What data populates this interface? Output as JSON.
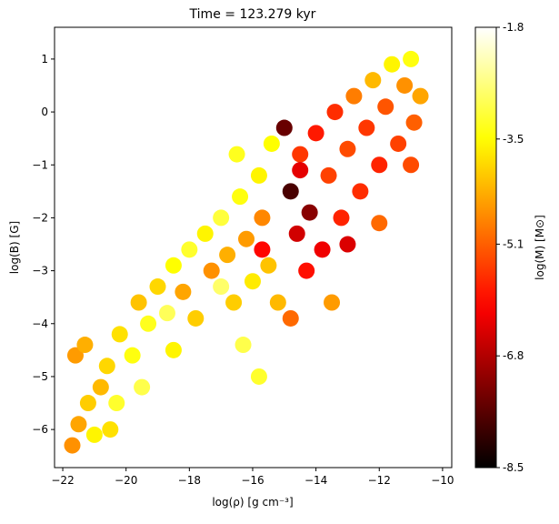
{
  "chart_data": {
    "type": "scatter",
    "title": "Time = 123.279 kyr",
    "xlabel": "log(ρ) [g cm⁻³]",
    "ylabel": "log(B) [G]",
    "x": [
      -21.7,
      -21.5,
      -21.2,
      -21.0,
      -20.8,
      -21.6,
      -21.3,
      -20.6,
      -20.3,
      -20.2,
      -19.8,
      -19.6,
      -19.3,
      -19.0,
      -18.7,
      -18.5,
      -18.2,
      -18.0,
      -17.8,
      -17.5,
      -17.3,
      -17.0,
      -16.8,
      -16.6,
      -16.4,
      -16.2,
      -16.0,
      -15.8,
      -15.7,
      -15.5,
      -15.4,
      -15.2,
      -15.0,
      -14.8,
      -14.6,
      -14.5,
      -14.3,
      -14.2,
      -14.0,
      -13.8,
      -13.6,
      -13.4,
      -13.2,
      -13.0,
      -12.8,
      -12.6,
      -12.4,
      -12.2,
      -12.0,
      -11.8,
      -11.6,
      -11.4,
      -11.2,
      -11.0,
      -10.9,
      -10.7,
      -12.0,
      -11.0,
      -13.5,
      -14.8,
      -16.3,
      -15.8,
      -17.0,
      -19.5,
      -20.5,
      -18.5,
      -16.5,
      -15.7,
      -14.5,
      -13.0
    ],
    "y": [
      -6.3,
      -5.9,
      -5.5,
      -6.1,
      -5.2,
      -4.6,
      -4.4,
      -4.8,
      -5.5,
      -4.2,
      -4.6,
      -3.6,
      -4.0,
      -3.3,
      -3.8,
      -2.9,
      -3.4,
      -2.6,
      -3.9,
      -2.3,
      -3.0,
      -2.0,
      -2.7,
      -3.6,
      -1.6,
      -2.4,
      -3.2,
      -1.2,
      -2.0,
      -2.9,
      -0.6,
      -3.6,
      -0.3,
      -1.5,
      -2.3,
      -0.8,
      -3.0,
      -1.9,
      -0.4,
      -2.6,
      -1.2,
      0.0,
      -2.0,
      -0.7,
      0.3,
      -1.5,
      -0.3,
      0.6,
      -1.0,
      0.1,
      0.9,
      -0.6,
      0.5,
      1.0,
      -0.2,
      0.3,
      -2.1,
      -1.0,
      -3.6,
      -3.9,
      -4.4,
      -5.0,
      -3.3,
      -5.2,
      -6.0,
      -4.5,
      -0.8,
      -2.6,
      -1.1,
      -2.5
    ],
    "c": [
      -4.6,
      -4.4,
      -4.0,
      -3.6,
      -4.2,
      -4.5,
      -4.3,
      -3.9,
      -3.2,
      -3.8,
      -3.4,
      -4.1,
      -3.3,
      -3.9,
      -2.9,
      -3.5,
      -4.4,
      -3.2,
      -4.0,
      -3.6,
      -4.6,
      -3.1,
      -4.3,
      -4.0,
      -3.4,
      -4.5,
      -3.7,
      -3.6,
      -4.7,
      -4.1,
      -3.5,
      -4.2,
      -7.5,
      -7.8,
      -6.5,
      -5.5,
      -5.9,
      -7.2,
      -5.8,
      -6.2,
      -5.4,
      -5.6,
      -5.7,
      -5.3,
      -4.8,
      -5.6,
      -5.5,
      -4.2,
      -5.7,
      -5.2,
      -3.6,
      -5.4,
      -4.6,
      -3.4,
      -5.1,
      -4.4,
      -5.0,
      -5.3,
      -4.5,
      -5.0,
      -3.0,
      -3.2,
      -2.8,
      -3.0,
      -3.8,
      -3.6,
      -3.3,
      -6.0,
      -6.3,
      -6.4
    ],
    "xlim": [
      -22.26,
      -9.71
    ],
    "ylim": [
      -6.72,
      1.6
    ],
    "xticks": [
      {
        "value": -22,
        "label": "−22"
      },
      {
        "value": -20,
        "label": "−20"
      },
      {
        "value": -18,
        "label": "−18"
      },
      {
        "value": -16,
        "label": "−16"
      },
      {
        "value": -14,
        "label": "−14"
      },
      {
        "value": -12,
        "label": "−12"
      },
      {
        "value": -10,
        "label": "−10"
      }
    ],
    "yticks": [
      {
        "value": -6,
        "label": "−6"
      },
      {
        "value": -5,
        "label": "−5"
      },
      {
        "value": -4,
        "label": "−4"
      },
      {
        "value": -3,
        "label": "−3"
      },
      {
        "value": -2,
        "label": "−2"
      },
      {
        "value": -1,
        "label": "−1"
      },
      0,
      1
    ],
    "colorbar": {
      "label": "log(M) [M⊙]",
      "cmap": "hot",
      "clim": [
        -8.5,
        -1.8
      ],
      "ticks": [
        -1.8,
        -3.5,
        -5.1,
        -6.8,
        -8.5
      ]
    }
  }
}
